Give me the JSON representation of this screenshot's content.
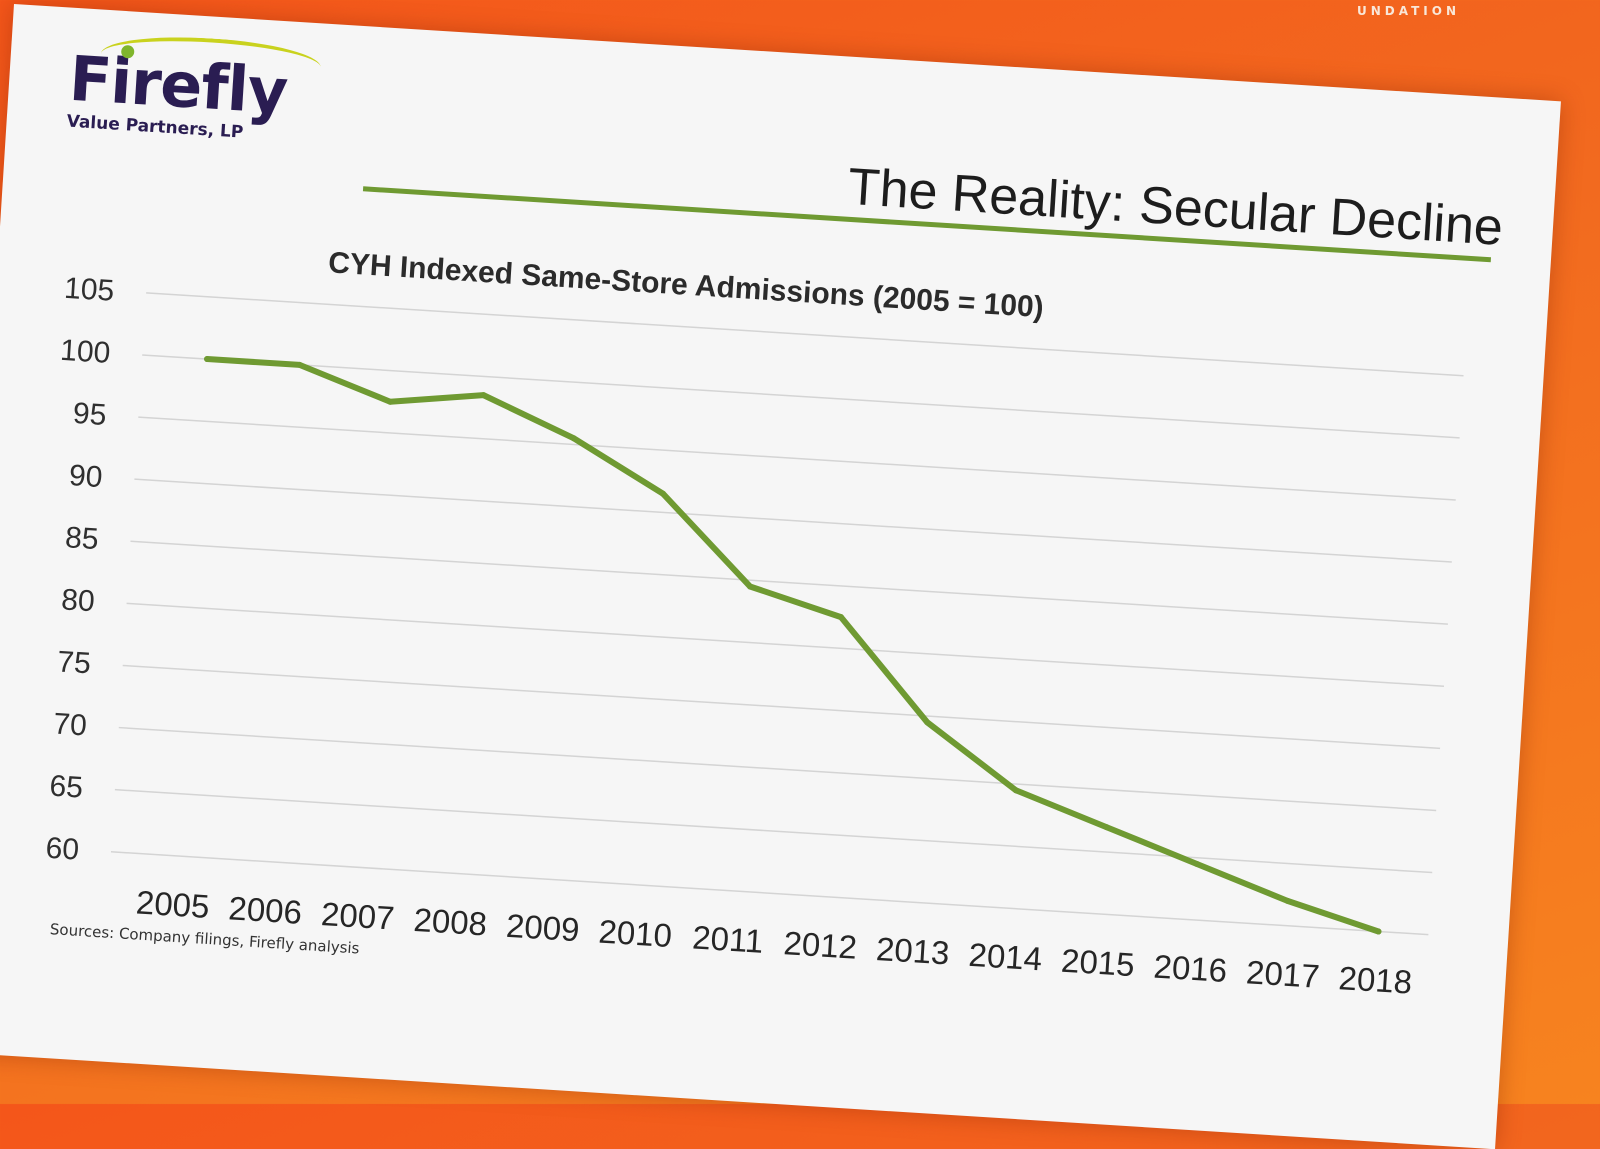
{
  "corner_text": "UNDATION",
  "logo": {
    "word": "Firefly",
    "subtitle": "Value Partners, LP"
  },
  "slide_title": "The Reality: Secular Decline",
  "sources": "Sources: Company filings, Firefly analysis",
  "colors": {
    "line": "#6f9a32",
    "grid": "#d4d4d4",
    "background": "#f6f6f6",
    "accent_orange": "#f26a1f"
  },
  "chart_data": {
    "type": "line",
    "title": "CYH Indexed Same-Store Admissions (2005 = 100)",
    "xlabel": "",
    "ylabel": "",
    "categories": [
      "2005",
      "2006",
      "2007",
      "2008",
      "2009",
      "2010",
      "2011",
      "2012",
      "2013",
      "2014",
      "2015",
      "2016",
      "2017",
      "2018"
    ],
    "series": [
      {
        "values": [
          100,
          100,
          97.5,
          98.5,
          95.5,
          91.5,
          84.5,
          82.5,
          74.5,
          69.5,
          67,
          64.5,
          62,
          60
        ]
      }
    ],
    "ylim": [
      60,
      105
    ],
    "yticks": [
      105,
      100,
      95,
      90,
      85,
      80,
      75,
      70,
      65,
      60
    ],
    "grid": true,
    "legend": "none"
  }
}
